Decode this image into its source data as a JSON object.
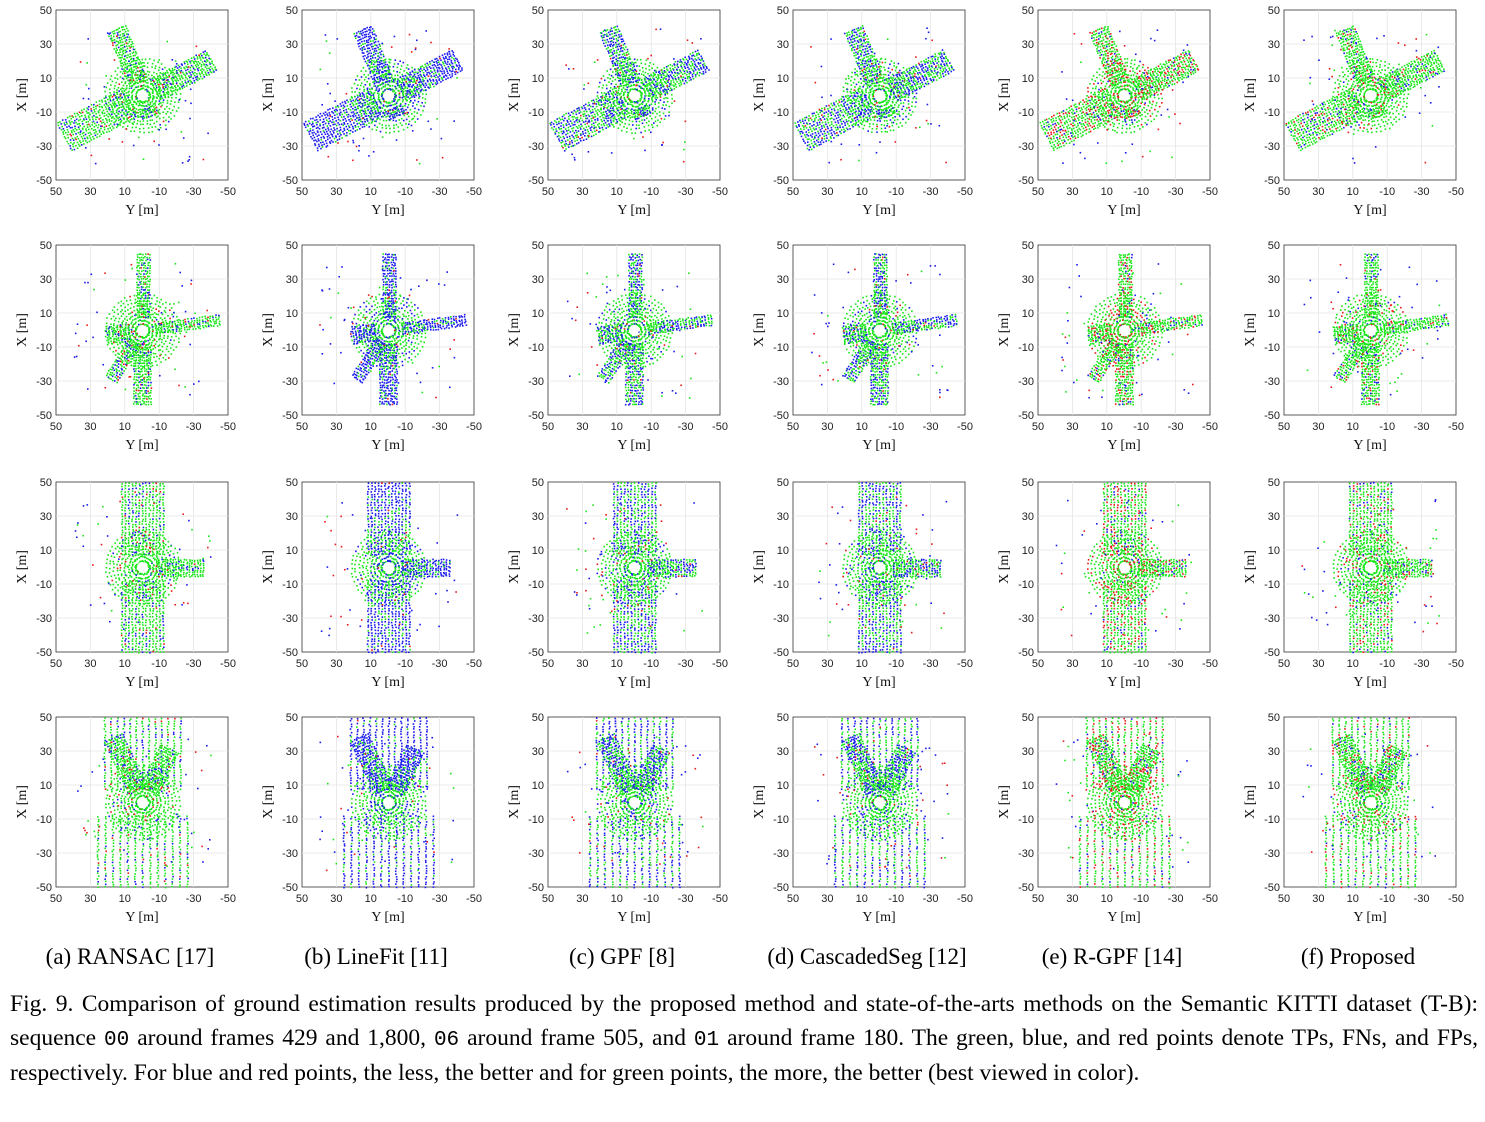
{
  "figure": {
    "axes": {
      "xlabel": "Y [m]",
      "ylabel": "X [m]",
      "x_ticks": [
        "50",
        "30",
        "10",
        "-10",
        "-30",
        "-50"
      ],
      "y_ticks": [
        "50",
        "30",
        "10",
        "-10",
        "-30",
        "-50"
      ]
    },
    "point_colors": {
      "tp": "#19e619",
      "fn": "#1a1aee",
      "fp": "#e81a1a"
    },
    "columns": [
      {
        "label": "(a) RANSAC [17]"
      },
      {
        "label": "(b) LineFit [11]"
      },
      {
        "label": "(c) GPF [8]"
      },
      {
        "label": "(d) CascadedSeg [12]"
      },
      {
        "label": "(e) R-GPF [14]"
      },
      {
        "label": "(f) Proposed"
      }
    ]
  },
  "caption": {
    "part1": "Fig. 9. Comparison of ground estimation results produced by the proposed method and state-of-the-arts methods on the Semantic KITTI dataset (T-B): sequence ",
    "seq1": "00",
    "part2": " around frames 429 and 1,800, ",
    "seq2": "06",
    "part3": " around frame 505, and ",
    "seq3": "01",
    "part4": " around frame 180. The green, blue, and red points denote TPs, FNs, and FPs, respectively. For blue and red points, the less, the better and for green points, the more, the better (best viewed in color)."
  }
}
